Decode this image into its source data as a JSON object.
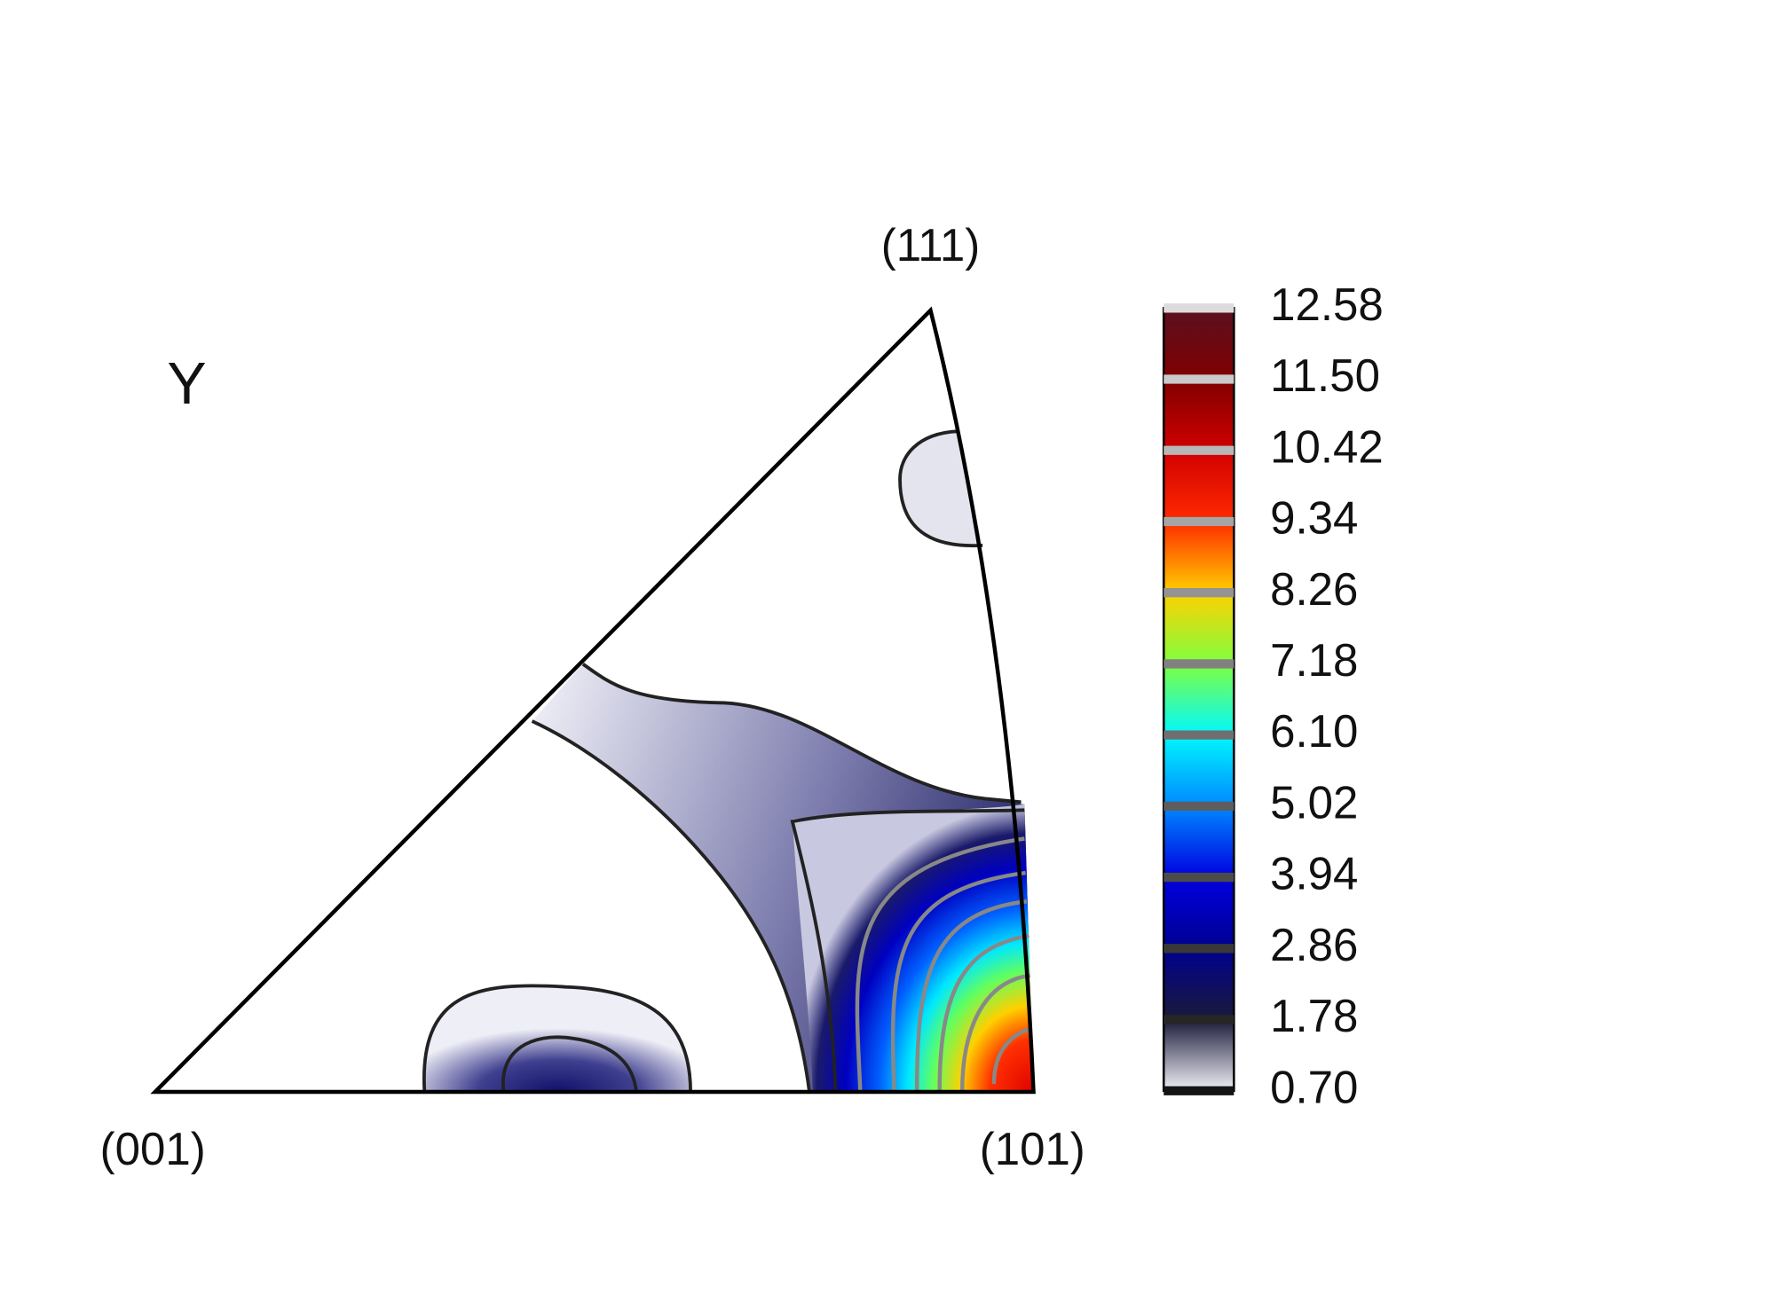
{
  "chart_data": {
    "type": "inverse-pole-figure",
    "label": "Y",
    "poles": [
      "(001)",
      "(101)",
      "(111)"
    ],
    "colorbar": {
      "clim": [
        0.7,
        12.58
      ],
      "ticks": [
        {
          "value": 0.7,
          "label": "0.70"
        },
        1.78,
        2.86,
        3.94,
        5.02,
        {
          "value": 6.1,
          "label": "6.10"
        },
        7.18,
        8.26,
        9.34,
        10.42,
        {
          "value": 11.5,
          "label": "11.50"
        },
        12.58
      ],
      "colors": [
        "#f2f2f8",
        "#1a1a3a",
        "#000090",
        "#0000e0",
        "#0088ff",
        "#00f8ff",
        "#80ff40",
        "#ffd000",
        "#ff2a00",
        "#d00000",
        "#800000",
        "#5a1020"
      ]
    }
  }
}
